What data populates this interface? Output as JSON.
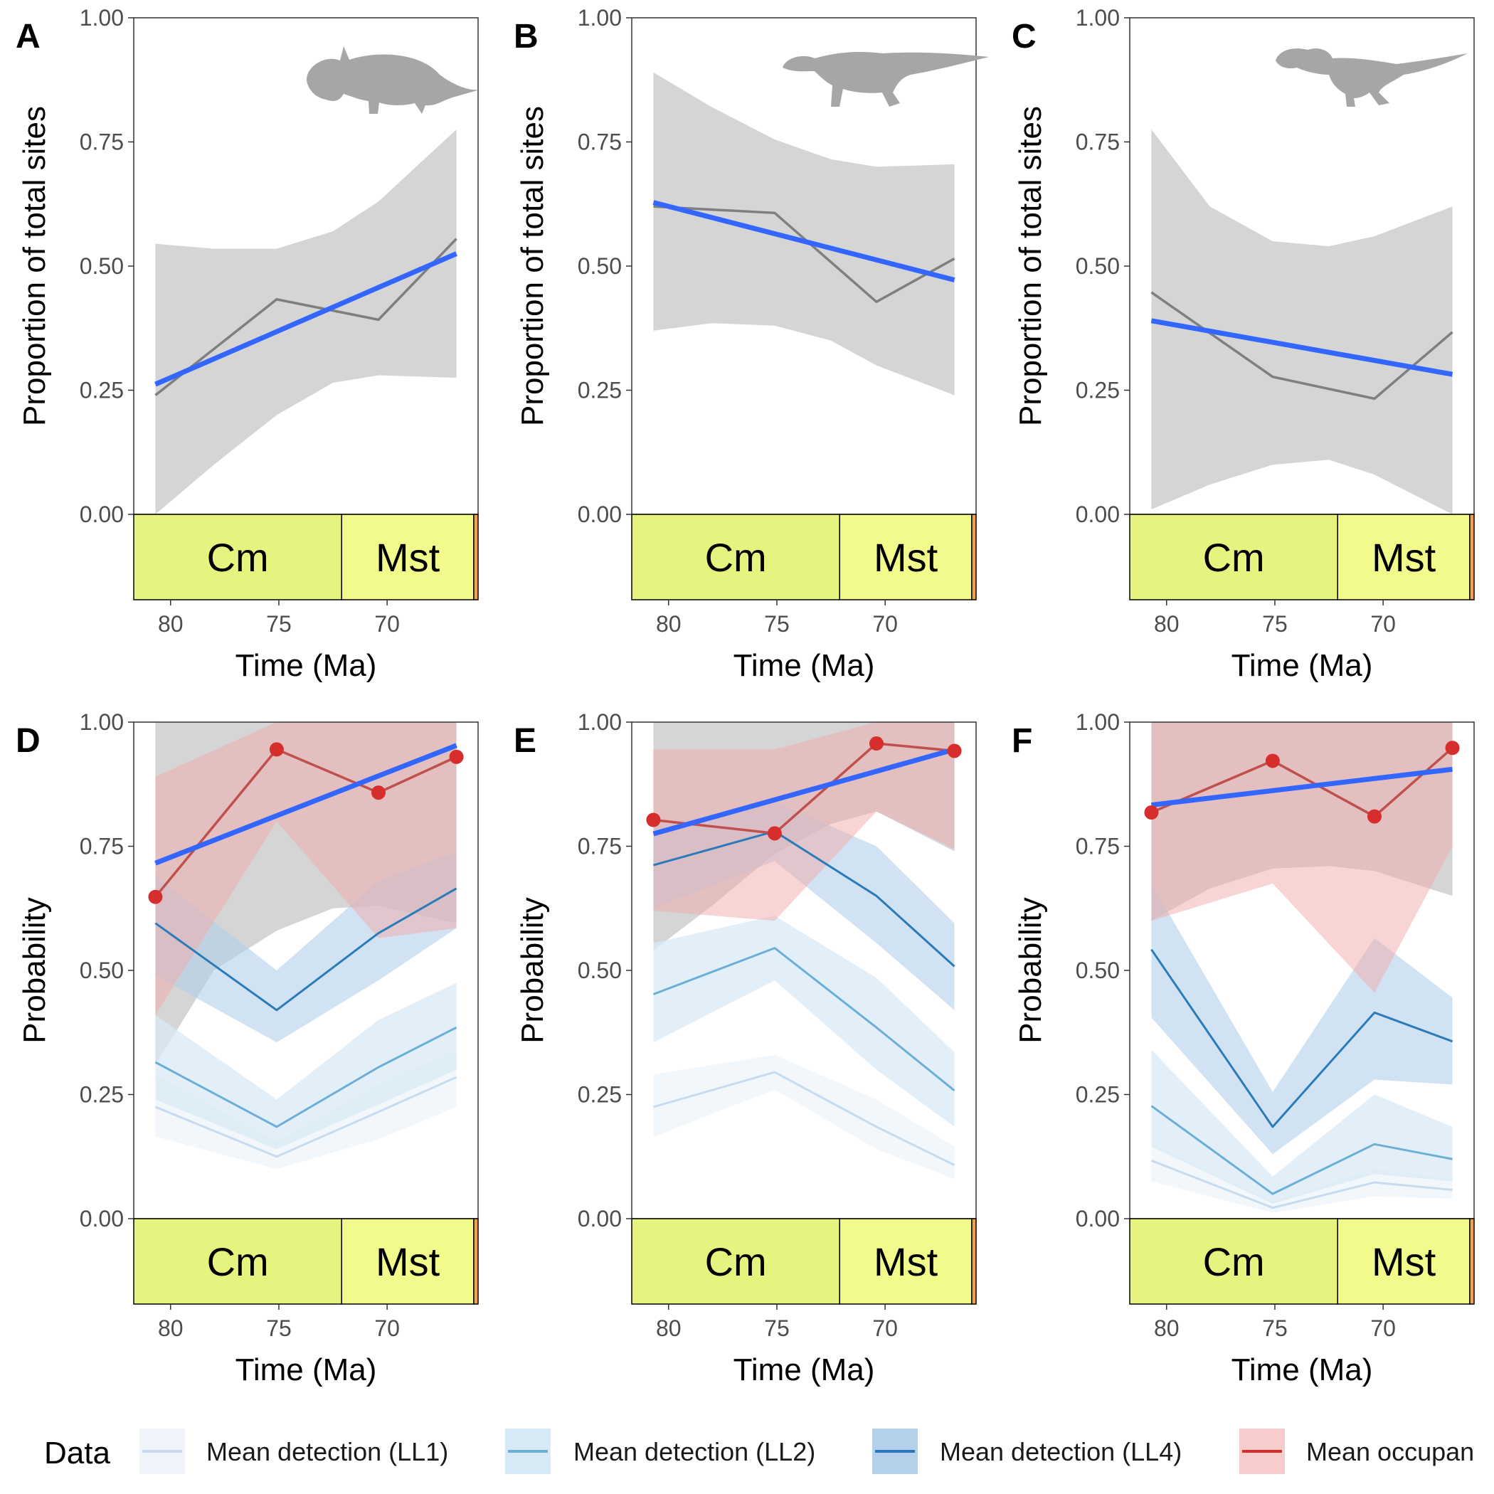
{
  "chart_data": [
    {
      "id": "A",
      "type": "line",
      "panel_label": "A",
      "silhouette": "ceratopsian-dinosaur-silhouette",
      "ylabel": "Proportion of total sites",
      "xlabel": "Time (Ma)",
      "yticks": [
        "0.00",
        "0.25",
        "0.50",
        "0.75",
        "1.00"
      ],
      "ylim": [
        0,
        1
      ],
      "xticks": [
        80,
        75,
        70
      ],
      "xlim": [
        81.7,
        65.8
      ],
      "x_reversed": true,
      "stages": [
        {
          "label": "Cm",
          "from": 83.6,
          "to": 72.1,
          "color": "#e6f47f"
        },
        {
          "label": "Mst",
          "from": 72.1,
          "to": 66.0,
          "color": "#f2fa8c"
        },
        {
          "label": "",
          "from": 66.0,
          "to": 65.8,
          "color": "#f2a04a"
        }
      ],
      "series": [
        {
          "role": "observed",
          "x": [
            80.7,
            75.1,
            70.4,
            66.8
          ],
          "y": [
            0.24,
            0.433,
            0.392,
            0.555
          ]
        },
        {
          "role": "trend",
          "x": [
            80.7,
            66.8
          ],
          "y": [
            0.262,
            0.525
          ]
        },
        {
          "role": "ci",
          "x": [
            80.7,
            78.0,
            75.1,
            72.5,
            70.4,
            66.8
          ],
          "upper": [
            0.545,
            0.535,
            0.535,
            0.57,
            0.63,
            0.775
          ],
          "lower": [
            0.0,
            0.1,
            0.2,
            0.265,
            0.28,
            0.275
          ]
        }
      ]
    },
    {
      "id": "B",
      "type": "line",
      "panel_label": "B",
      "silhouette": "hadrosaur-dinosaur-silhouette",
      "ylabel": "Proportion of total sites",
      "xlabel": "Time (Ma)",
      "yticks": [
        "0.00",
        "0.25",
        "0.50",
        "0.75",
        "1.00"
      ],
      "ylim": [
        0,
        1
      ],
      "xticks": [
        80,
        75,
        70
      ],
      "xlim": [
        81.7,
        65.8
      ],
      "x_reversed": true,
      "stages": [
        {
          "label": "Cm",
          "from": 83.6,
          "to": 72.1,
          "color": "#e6f47f"
        },
        {
          "label": "Mst",
          "from": 72.1,
          "to": 66.0,
          "color": "#f2fa8c"
        },
        {
          "label": "",
          "from": 66.0,
          "to": 65.8,
          "color": "#f2a04a"
        }
      ],
      "series": [
        {
          "role": "observed",
          "x": [
            80.7,
            75.1,
            70.4,
            66.8
          ],
          "y": [
            0.62,
            0.607,
            0.428,
            0.515
          ]
        },
        {
          "role": "trend",
          "x": [
            80.7,
            66.8
          ],
          "y": [
            0.628,
            0.472
          ]
        },
        {
          "role": "ci",
          "x": [
            80.7,
            78.0,
            75.1,
            72.5,
            70.4,
            66.8
          ],
          "upper": [
            0.89,
            0.82,
            0.755,
            0.715,
            0.7,
            0.705
          ],
          "lower": [
            0.37,
            0.385,
            0.38,
            0.35,
            0.3,
            0.24
          ]
        }
      ]
    },
    {
      "id": "C",
      "type": "line",
      "panel_label": "C",
      "silhouette": "tyrannosaur-dinosaur-silhouette",
      "ylabel": "Proportion of total sites",
      "xlabel": "Time (Ma)",
      "yticks": [
        "0.00",
        "0.25",
        "0.50",
        "0.75",
        "1.00"
      ],
      "ylim": [
        0,
        1
      ],
      "xticks": [
        80,
        75,
        70
      ],
      "xlim": [
        81.7,
        65.8
      ],
      "x_reversed": true,
      "stages": [
        {
          "label": "Cm",
          "from": 83.6,
          "to": 72.1,
          "color": "#e6f47f"
        },
        {
          "label": "Mst",
          "from": 72.1,
          "to": 66.0,
          "color": "#f2fa8c"
        },
        {
          "label": "",
          "from": 66.0,
          "to": 65.8,
          "color": "#f2a04a"
        }
      ],
      "series": [
        {
          "role": "observed",
          "x": [
            80.7,
            75.1,
            70.4,
            66.8
          ],
          "y": [
            0.447,
            0.277,
            0.233,
            0.367
          ]
        },
        {
          "role": "trend",
          "x": [
            80.7,
            66.8
          ],
          "y": [
            0.39,
            0.282
          ]
        },
        {
          "role": "ci",
          "x": [
            80.7,
            78.0,
            75.1,
            72.5,
            70.4,
            66.8
          ],
          "upper": [
            0.775,
            0.62,
            0.55,
            0.54,
            0.56,
            0.62
          ],
          "lower": [
            0.01,
            0.06,
            0.1,
            0.11,
            0.08,
            0.0
          ]
        }
      ]
    },
    {
      "id": "D",
      "type": "line",
      "panel_label": "D",
      "ylabel": "Probability",
      "xlabel": "Time (Ma)",
      "yticks": [
        "0.00",
        "0.25",
        "0.50",
        "0.75",
        "1.00"
      ],
      "ylim": [
        0,
        1
      ],
      "xticks": [
        80,
        75,
        70
      ],
      "xlim": [
        81.7,
        65.8
      ],
      "x_reversed": true,
      "stages": [
        {
          "label": "Cm",
          "from": 83.6,
          "to": 72.1,
          "color": "#e6f47f"
        },
        {
          "label": "Mst",
          "from": 72.1,
          "to": 66.0,
          "color": "#f2fa8c"
        },
        {
          "label": "",
          "from": 66.0,
          "to": 65.8,
          "color": "#f2a04a"
        }
      ],
      "x": [
        80.7,
        75.1,
        70.4,
        66.8
      ],
      "series": [
        {
          "name": "Mean detection (LL1)",
          "y": [
            0.225,
            0.125,
            0.215,
            0.285
          ],
          "upper": [
            0.29,
            0.155,
            0.27,
            0.34
          ],
          "lower": [
            0.165,
            0.1,
            0.16,
            0.225
          ]
        },
        {
          "name": "Mean detection (LL2)",
          "y": [
            0.315,
            0.185,
            0.305,
            0.385
          ],
          "upper": [
            0.41,
            0.24,
            0.4,
            0.475
          ],
          "lower": [
            0.24,
            0.14,
            0.23,
            0.3
          ]
        },
        {
          "name": "Mean detection (LL4)",
          "y": [
            0.595,
            0.42,
            0.575,
            0.665
          ],
          "upper": [
            0.69,
            0.5,
            0.68,
            0.74
          ],
          "lower": [
            0.49,
            0.355,
            0.48,
            0.585
          ]
        },
        {
          "name": "Mean occupancy",
          "y": [
            0.648,
            0.945,
            0.858,
            0.93
          ],
          "upper": [
            0.89,
            1.0,
            1.0,
            1.0
          ],
          "lower": [
            0.41,
            0.8,
            0.565,
            0.585
          ]
        }
      ],
      "trend": {
        "x": [
          80.7,
          66.8
        ],
        "y": [
          0.716,
          0.953
        ]
      },
      "trend_ci": {
        "x": [
          80.7,
          78.0,
          75.1,
          72.5,
          70.4,
          66.8
        ],
        "upper": [
          1.0,
          1.0,
          1.0,
          1.0,
          1.0,
          1.0
        ],
        "lower": [
          0.31,
          0.5,
          0.58,
          0.625,
          0.63,
          0.595
        ]
      }
    },
    {
      "id": "E",
      "type": "line",
      "panel_label": "E",
      "ylabel": "Probability",
      "xlabel": "Time (Ma)",
      "yticks": [
        "0.00",
        "0.25",
        "0.50",
        "0.75",
        "1.00"
      ],
      "ylim": [
        0,
        1
      ],
      "xticks": [
        80,
        75,
        70
      ],
      "xlim": [
        81.7,
        65.8
      ],
      "x_reversed": true,
      "stages": [
        {
          "label": "Cm",
          "from": 83.6,
          "to": 72.1,
          "color": "#e6f47f"
        },
        {
          "label": "Mst",
          "from": 72.1,
          "to": 66.0,
          "color": "#f2fa8c"
        },
        {
          "label": "",
          "from": 66.0,
          "to": 65.8,
          "color": "#f2a04a"
        }
      ],
      "x": [
        80.7,
        75.1,
        70.4,
        66.8
      ],
      "series": [
        {
          "name": "Mean detection (LL1)",
          "y": [
            0.225,
            0.295,
            0.185,
            0.108
          ],
          "upper": [
            0.29,
            0.33,
            0.24,
            0.145
          ],
          "lower": [
            0.165,
            0.26,
            0.14,
            0.08
          ]
        },
        {
          "name": "Mean detection (LL2)",
          "y": [
            0.452,
            0.545,
            0.385,
            0.258
          ],
          "upper": [
            0.555,
            0.61,
            0.485,
            0.335
          ],
          "lower": [
            0.355,
            0.48,
            0.3,
            0.185
          ]
        },
        {
          "name": "Mean detection (LL4)",
          "y": [
            0.712,
            0.78,
            0.65,
            0.508
          ],
          "upper": [
            0.79,
            0.84,
            0.75,
            0.595
          ],
          "lower": [
            0.625,
            0.72,
            0.555,
            0.42
          ]
        },
        {
          "name": "Mean occupancy",
          "y": [
            0.803,
            0.776,
            0.957,
            0.942
          ],
          "upper": [
            0.945,
            0.945,
            1.0,
            1.0
          ],
          "lower": [
            0.62,
            0.6,
            0.82,
            0.745
          ]
        }
      ],
      "trend": {
        "x": [
          80.7,
          66.8
        ],
        "y": [
          0.775,
          0.945
        ]
      },
      "trend_ci": {
        "x": [
          80.7,
          78.0,
          75.1,
          72.5,
          70.4,
          66.8
        ],
        "upper": [
          1.0,
          1.0,
          1.0,
          1.0,
          1.0,
          1.0
        ],
        "lower": [
          0.54,
          0.63,
          0.735,
          0.795,
          0.82,
          0.74
        ]
      }
    },
    {
      "id": "F",
      "type": "line",
      "panel_label": "F",
      "ylabel": "Probability",
      "xlabel": "Time (Ma)",
      "yticks": [
        "0.00",
        "0.25",
        "0.50",
        "0.75",
        "1.00"
      ],
      "ylim": [
        0,
        1
      ],
      "xticks": [
        80,
        75,
        70
      ],
      "xlim": [
        81.7,
        65.8
      ],
      "x_reversed": true,
      "stages": [
        {
          "label": "Cm",
          "from": 83.6,
          "to": 72.1,
          "color": "#e6f47f"
        },
        {
          "label": "Mst",
          "from": 72.1,
          "to": 66.0,
          "color": "#f2fa8c"
        },
        {
          "label": "",
          "from": 66.0,
          "to": 65.8,
          "color": "#f2a04a"
        }
      ],
      "x": [
        80.7,
        75.1,
        70.4,
        66.8
      ],
      "series": [
        {
          "name": "Mean detection (LL1)",
          "y": [
            0.117,
            0.022,
            0.073,
            0.058
          ],
          "upper": [
            0.15,
            0.035,
            0.1,
            0.08
          ],
          "lower": [
            0.075,
            0.012,
            0.045,
            0.04
          ]
        },
        {
          "name": "Mean detection (LL2)",
          "y": [
            0.227,
            0.05,
            0.15,
            0.12
          ],
          "upper": [
            0.34,
            0.085,
            0.25,
            0.185
          ],
          "lower": [
            0.145,
            0.03,
            0.09,
            0.075
          ]
        },
        {
          "name": "Mean detection (LL4)",
          "y": [
            0.542,
            0.185,
            0.415,
            0.357
          ],
          "upper": [
            0.675,
            0.255,
            0.565,
            0.445
          ],
          "lower": [
            0.405,
            0.13,
            0.28,
            0.27
          ]
        },
        {
          "name": "Mean occupancy",
          "y": [
            0.818,
            0.922,
            0.81,
            0.948
          ],
          "upper": [
            1.0,
            1.0,
            1.0,
            1.0
          ],
          "lower": [
            0.6,
            0.675,
            0.455,
            0.75
          ]
        }
      ],
      "trend": {
        "x": [
          80.7,
          66.8
        ],
        "y": [
          0.833,
          0.905
        ]
      },
      "trend_ci": {
        "x": [
          80.7,
          78.0,
          75.1,
          72.5,
          70.4,
          66.8
        ],
        "upper": [
          1.0,
          1.0,
          1.0,
          1.0,
          1.0,
          1.0
        ],
        "lower": [
          0.6,
          0.665,
          0.705,
          0.71,
          0.7,
          0.65
        ]
      }
    }
  ],
  "legend": {
    "title": "Data",
    "items": [
      {
        "name": "Mean detection (LL1)"
      },
      {
        "name": "Mean detection (LL2)"
      },
      {
        "name": "Mean detection (LL4)"
      },
      {
        "name": "Mean occupan"
      }
    ]
  },
  "colors": {
    "trend": "#3366ff",
    "observed": "#7f7f7f",
    "ci_grey": "#bebebe",
    "LL1_line": "#c6dbef",
    "LL1_fill": "#eef4fa",
    "LL2_line": "#6baed6",
    "LL2_fill": "#d8eaf6",
    "LL4_line": "#2b7bba",
    "LL4_fill": "#b3d1ea",
    "occupancy_line": "#c0504d",
    "occupancy_point": "#d62d2d",
    "occupancy_fill": "#f2a9a9",
    "silhouette": "#a6a6a6"
  }
}
